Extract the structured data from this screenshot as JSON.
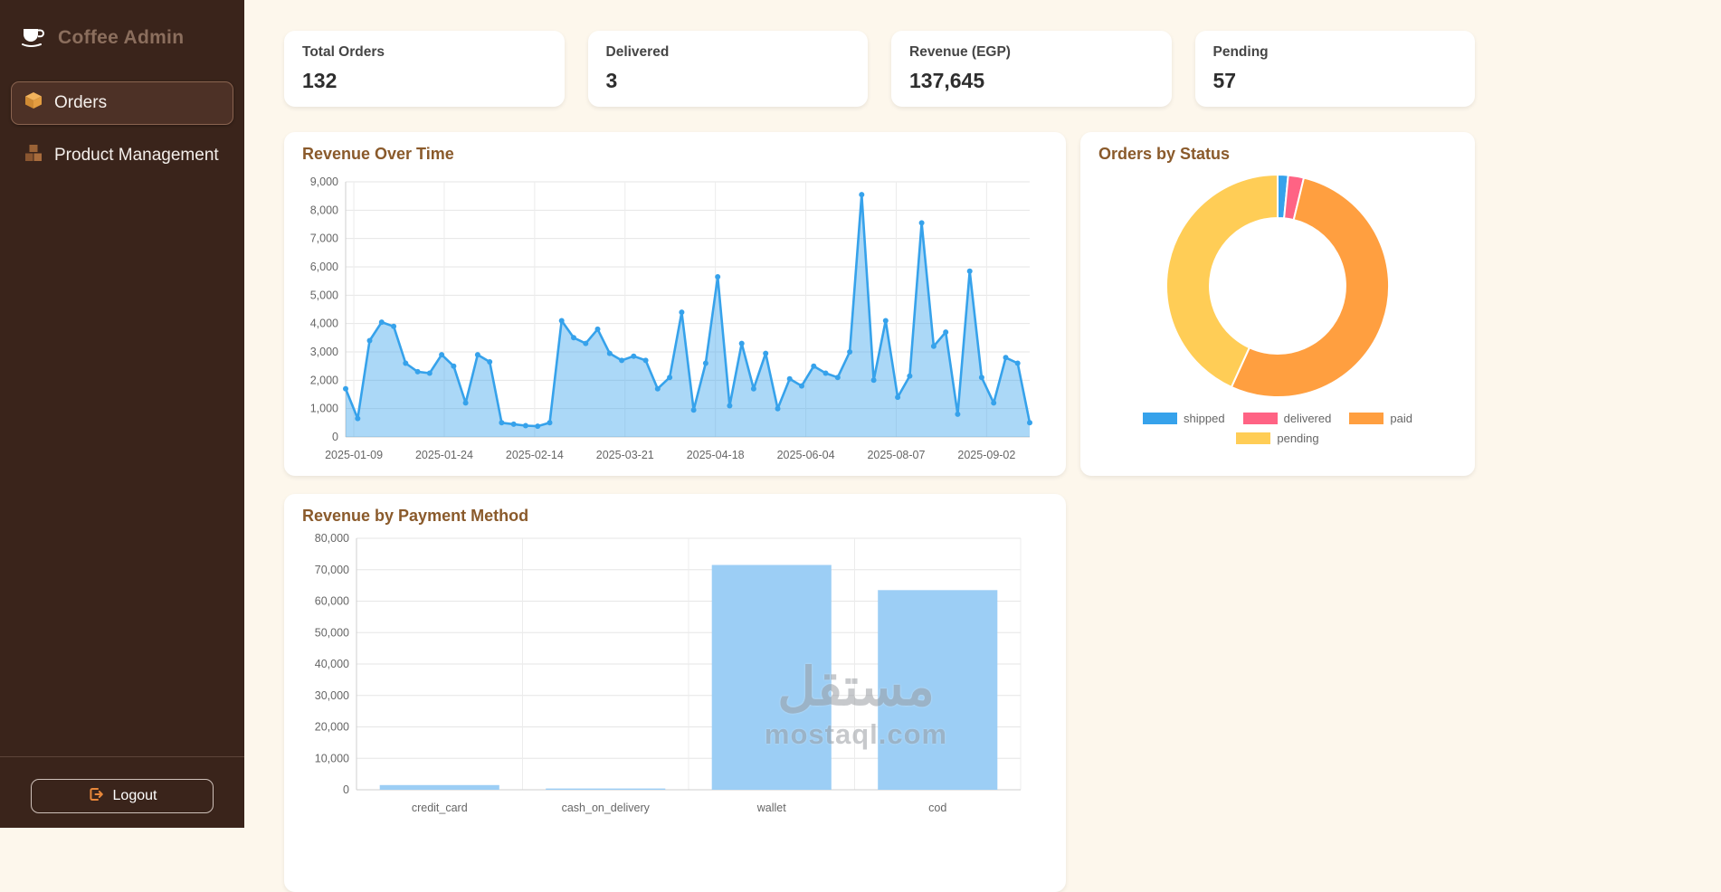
{
  "sidebar": {
    "brand": "Coffee Admin",
    "items": [
      {
        "label": "Orders",
        "icon": "orders-box-icon",
        "active": true
      },
      {
        "label": "Product Management",
        "icon": "products-icon",
        "active": false
      }
    ],
    "logout_label": "Logout"
  },
  "stats": [
    {
      "label": "Total Orders",
      "value": "132"
    },
    {
      "label": "Delivered",
      "value": "3"
    },
    {
      "label": "Revenue (EGP)",
      "value": "137,645"
    },
    {
      "label": "Pending",
      "value": "57"
    }
  ],
  "watermark": {
    "line1": "مستقل",
    "line2": "mostaql.com"
  },
  "colors": {
    "sidebar_bg": "#3a241b",
    "page_bg": "#fdf7ec",
    "title_brown": "#8a5a2b",
    "chart_blue": "#36A2EB",
    "chart_pink": "#FF6384",
    "chart_orange": "#FF9F40",
    "chart_yellow": "#FFCD56"
  },
  "chart_data": [
    {
      "type": "area",
      "title": "Revenue Over Time",
      "xlabel": "",
      "ylabel": "",
      "ylim": [
        0,
        9000
      ],
      "y_step": 1000,
      "grid": true,
      "x_tick_labels": [
        "2025-01-09",
        "2025-01-24",
        "2025-02-14",
        "2025-03-21",
        "2025-04-18",
        "2025-06-04",
        "2025-08-07",
        "2025-09-02"
      ],
      "values": [
        1700,
        650,
        3400,
        4050,
        3900,
        2600,
        2300,
        2250,
        2900,
        2500,
        1200,
        2900,
        2650,
        500,
        450,
        400,
        380,
        500,
        4100,
        3500,
        3300,
        3800,
        2950,
        2700,
        2850,
        2700,
        1700,
        2100,
        4400,
        950,
        2600,
        5650,
        1100,
        3300,
        1700,
        2950,
        1000,
        2050,
        1800,
        2500,
        2250,
        2100,
        3000,
        8550,
        2000,
        4100,
        1400,
        2150,
        7550,
        3200,
        3700,
        800,
        5850,
        2100,
        1200,
        2800,
        2600,
        500
      ],
      "line_color": "#36A2EB",
      "fill_color": "rgba(54,162,235,0.42)"
    },
    {
      "type": "pie",
      "subtype": "doughnut",
      "title": "Orders by Status",
      "labels": [
        "shipped",
        "delivered",
        "paid",
        "pending"
      ],
      "values": [
        2,
        3,
        70,
        57
      ],
      "colors": [
        "#36A2EB",
        "#FF6384",
        "#FF9F40",
        "#FFCD56"
      ],
      "legend_position": "bottom"
    },
    {
      "type": "bar",
      "title": "Revenue by Payment Method",
      "categories": [
        "credit_card",
        "cash_on_delivery",
        "wallet",
        "cod"
      ],
      "values": [
        1500,
        400,
        71500,
        63500
      ],
      "ylim": [
        0,
        80000
      ],
      "y_step": 10000,
      "grid": true,
      "bar_color": "#9CCEF5"
    }
  ]
}
